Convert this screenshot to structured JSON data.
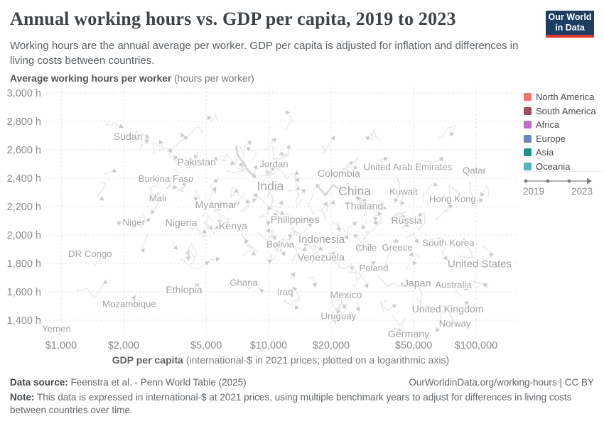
{
  "header": {
    "title": "Annual working hours vs. GDP per capita, 2019 to 2023",
    "subtitle": "Working hours are the annual average per worker. GDP per capita is adjusted for inflation and differences in living costs between countries.",
    "logo": {
      "line1": "Our World",
      "line2": "in Data"
    }
  },
  "legend": {
    "items": [
      {
        "label": "North America",
        "color": "#ef756c"
      },
      {
        "label": "South America",
        "color": "#9e4b5c"
      },
      {
        "label": "Africa",
        "color": "#bd6fc6"
      },
      {
        "label": "Europe",
        "color": "#6d86b8"
      },
      {
        "label": "Asia",
        "color": "#17967f"
      },
      {
        "label": "Oceania",
        "color": "#50b9b5"
      }
    ],
    "timeline": {
      "start": "2019",
      "end": "2023"
    }
  },
  "chart_data": {
    "type": "scatter",
    "title": "Annual working hours vs. GDP per capita, 2019 to 2023",
    "ylabel_bold": "Average working hours per worker",
    "ylabel_rest": " (hours per worker)",
    "xlabel_bold": "GDP per capita",
    "xlabel_rest": " (international-$ in 2021 prices; plotted on a logarithmic axis)",
    "x_scale": "log",
    "x_range": [
      820,
      160000
    ],
    "y_range": [
      1250,
      3050
    ],
    "grid": true,
    "legend_position": "right",
    "x_ticks": [
      {
        "label": "$1,000",
        "value": 1000
      },
      {
        "label": "$2,000",
        "value": 2000
      },
      {
        "label": "$5,000",
        "value": 5000
      },
      {
        "label": "$10,000",
        "value": 10000
      },
      {
        "label": "$20,000",
        "value": 20000
      },
      {
        "label": "$50,000",
        "value": 50000
      },
      {
        "label": "$100,000",
        "value": 100000
      }
    ],
    "y_ticks": [
      {
        "label": "3,000 h",
        "value": 3000
      },
      {
        "label": "2,800 h",
        "value": 2800
      },
      {
        "label": "2,600 h",
        "value": 2600
      },
      {
        "label": "2,400 h",
        "value": 2400
      },
      {
        "label": "2,200 h",
        "value": 2200
      },
      {
        "label": "2,000 h",
        "value": 2000
      },
      {
        "label": "1,800 h",
        "value": 1800
      },
      {
        "label": "1,600 h",
        "value": 1600
      },
      {
        "label": "1,400 h",
        "value": 1400
      }
    ],
    "series_note": "All country trajectories 2019-2023 shown as faint grey trails (unhighlighted state); values below are approximate label anchor positions read from the chart.",
    "countries": [
      {
        "name": "Sudan",
        "gdp": 2100,
        "hours": 2695,
        "size": 14.2
      },
      {
        "name": "Pakistan",
        "gdp": 4500,
        "hours": 2515,
        "size": 14.2
      },
      {
        "name": "Jordan",
        "gdp": 10600,
        "hours": 2500,
        "size": 13.2
      },
      {
        "name": "Burkina Faso",
        "gdp": 3200,
        "hours": 2397,
        "size": 13.2
      },
      {
        "name": "India",
        "gdp": 10200,
        "hours": 2345,
        "size": 17.5
      },
      {
        "name": "Colombia",
        "gdp": 21800,
        "hours": 2435,
        "size": 14.2
      },
      {
        "name": "United Arab Emirates",
        "gdp": 46900,
        "hours": 2480,
        "size": 13.2
      },
      {
        "name": "Qatar",
        "gdp": 98000,
        "hours": 2455,
        "size": 13.2
      },
      {
        "name": "Mali",
        "gdp": 2920,
        "hours": 2261,
        "size": 13.2
      },
      {
        "name": "Kuwait",
        "gdp": 44700,
        "hours": 2305,
        "size": 13.2
      },
      {
        "name": "Hong Kong",
        "gdp": 77000,
        "hours": 2255,
        "size": 13.2
      },
      {
        "name": "Myanmar",
        "gdp": 5580,
        "hours": 2216,
        "size": 14.2
      },
      {
        "name": "China",
        "gdp": 26000,
        "hours": 2310,
        "size": 17.5
      },
      {
        "name": "Thailand",
        "gdp": 28800,
        "hours": 2205,
        "size": 14.2
      },
      {
        "name": "Niger",
        "gdp": 2240,
        "hours": 2091,
        "size": 13.2
      },
      {
        "name": "Nigeria",
        "gdp": 3790,
        "hours": 2087,
        "size": 14.2
      },
      {
        "name": "Kenya",
        "gdp": 6740,
        "hours": 2065,
        "size": 14.2
      },
      {
        "name": "Philippines",
        "gdp": 13400,
        "hours": 2110,
        "size": 14.2
      },
      {
        "name": "Russia",
        "gdp": 46200,
        "hours": 2105,
        "size": 14.2
      },
      {
        "name": "Bolivia",
        "gdp": 11400,
        "hours": 1935,
        "size": 13.2
      },
      {
        "name": "Indonesia",
        "gdp": 18000,
        "hours": 1971,
        "size": 15
      },
      {
        "name": "Chile",
        "gdp": 29500,
        "hours": 1911,
        "size": 13.2
      },
      {
        "name": "Greece",
        "gdp": 41700,
        "hours": 1913,
        "size": 13.2
      },
      {
        "name": "South Korea",
        "gdp": 73500,
        "hours": 1946,
        "size": 13.2
      },
      {
        "name": "DR Congo",
        "gdp": 1380,
        "hours": 1867,
        "size": 13.2
      },
      {
        "name": "Venezuela",
        "gdp": 17900,
        "hours": 1846,
        "size": 14.2
      },
      {
        "name": "Poland",
        "gdp": 32100,
        "hours": 1768,
        "size": 13.2
      },
      {
        "name": "United States",
        "gdp": 104000,
        "hours": 1798,
        "size": 15
      },
      {
        "name": "Ghana",
        "gdp": 7590,
        "hours": 1666,
        "size": 13.2
      },
      {
        "name": "Japan",
        "gdp": 52000,
        "hours": 1663,
        "size": 14.2
      },
      {
        "name": "Australia",
        "gdp": 77700,
        "hours": 1650,
        "size": 13.2
      },
      {
        "name": "Ethiopia",
        "gdp": 3910,
        "hours": 1616,
        "size": 14.2
      },
      {
        "name": "Iraq",
        "gdp": 12000,
        "hours": 1600,
        "size": 13.2
      },
      {
        "name": "Mexico",
        "gdp": 23600,
        "hours": 1581,
        "size": 14.2
      },
      {
        "name": "Mozambique",
        "gdp": 2130,
        "hours": 1516,
        "size": 13.2
      },
      {
        "name": "United Kingdom",
        "gdp": 73000,
        "hours": 1481,
        "size": 14.2
      },
      {
        "name": "Uruguay",
        "gdp": 21700,
        "hours": 1430,
        "size": 13.2
      },
      {
        "name": "Norway",
        "gdp": 79000,
        "hours": 1379,
        "size": 13.2
      },
      {
        "name": "Germany",
        "gdp": 47300,
        "hours": 1306,
        "size": 14.2
      },
      {
        "name": "Yemen",
        "gdp": 950,
        "hours": 1341,
        "size": 13.2
      }
    ]
  },
  "footer": {
    "source_label": "Data source:",
    "source_value": " Feenstra et al. - Penn World Table (2025)",
    "credit": "OurWorldinData.org/working-hours | CC BY",
    "note_label": "Note:",
    "note_value": " This data is expressed in international-$ at 2021 prices, using multiple benchmark years to adjust for differences in living costs between countries over time."
  }
}
